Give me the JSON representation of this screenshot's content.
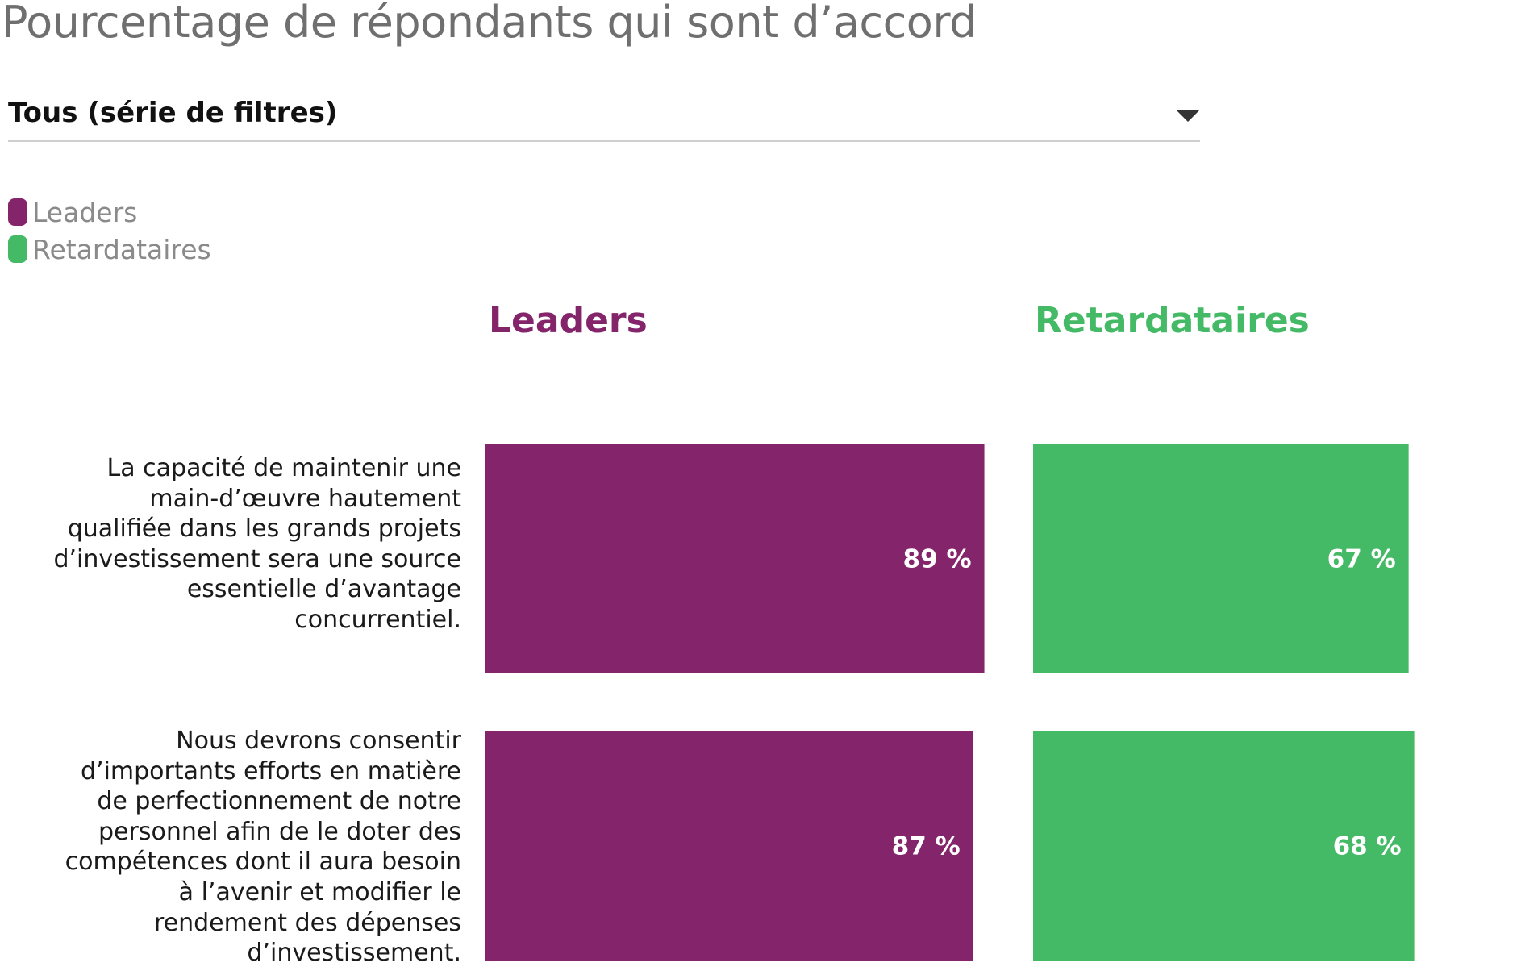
{
  "title": "Pourcentage de répondants qui sont d’accord",
  "filter": {
    "selected": "Tous (série de filtres)"
  },
  "legend": [
    {
      "label": "Leaders",
      "color": "#84256B"
    },
    {
      "label": "Retardataires",
      "color": "#45BA66"
    }
  ],
  "columns": [
    {
      "label": "Leaders",
      "color": "#84256B"
    },
    {
      "label": "Retardataires",
      "color": "#45BA66"
    }
  ],
  "chart_data": {
    "type": "bar",
    "categories": [
      "La capacité de maintenir une main-d’œuvre hautement qualifiée dans les grands projets d’investissement sera une source essentielle d’avantage concurrentiel.",
      "Nous devrons consentir d’importants efforts en matière de perfectionnement de notre personnel afin de le doter des compétences dont il aura besoin à l’avenir et modifier le rendement des dépenses d’investissement."
    ],
    "series": [
      {
        "name": "Leaders",
        "values": [
          89,
          87
        ],
        "labels": [
          "89 %",
          "87 %"
        ],
        "color": "#84256B"
      },
      {
        "name": "Retardataires",
        "values": [
          67,
          68
        ],
        "labels": [
          "67 %",
          "68 %"
        ],
        "color": "#45BA66"
      }
    ],
    "ylim": [
      0,
      100
    ],
    "grid": false,
    "legend_position": "top-left"
  }
}
